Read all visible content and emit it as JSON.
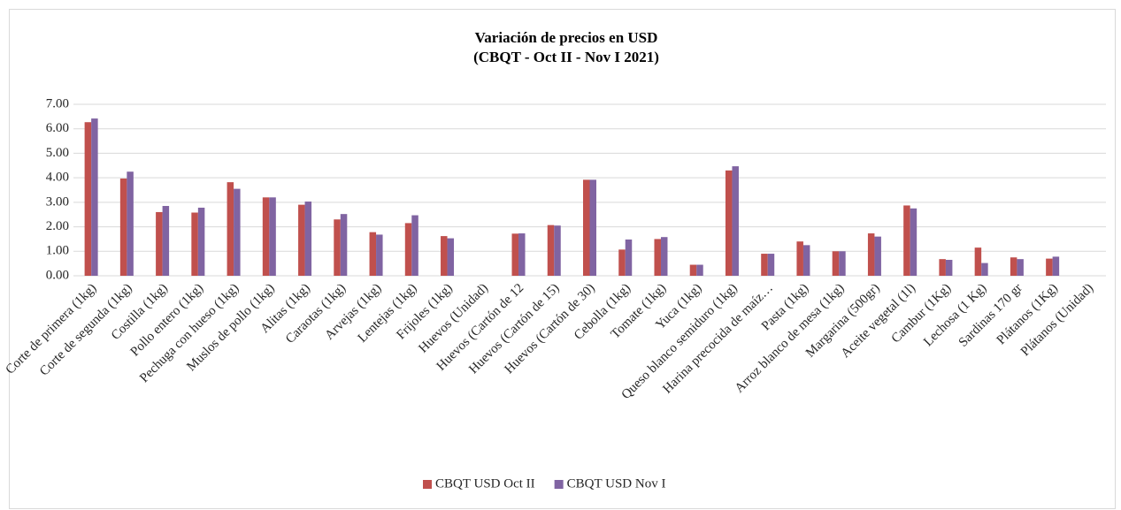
{
  "chart_data": {
    "type": "bar",
    "title": "Variación de precios en USD",
    "subtitle": "(CBQT - Oct II - Nov I 2021)",
    "categories": [
      "Corte de primera (1kg)",
      "Corte de segunda (1kg)",
      "Costilla (1kg)",
      "Pollo entero (1kg)",
      "Pechuga con hueso (1kg)",
      "Muslos de pollo (1kg)",
      "Alitas (1kg)",
      "Caraotas (1kg)",
      "Arvejas (1kg)",
      "Lentejas (1kg)",
      "Frijoles (1kg)",
      "Huevos (Unidad)",
      "Huevos (Cartón de 12",
      "Huevos (Cartón de 15)",
      "Huevos (Cartón de 30)",
      "Cebolla (1kg)",
      "Tomate (1kg)",
      "Yuca (1kg)",
      "Queso blanco semiduro (1kg)",
      "Harina precocida de maíz…",
      "Pasta (1kg)",
      "Arroz blanco de mesa (1kg)",
      "Margarina (500gr)",
      "Aceite vegetal (1l)",
      "Cambur (1Kg)",
      "Lechosa (1 Kg)",
      "Sardinas 170 gr",
      "Plátanos (1Kg)",
      "Plátanos (Unidad)"
    ],
    "series": [
      {
        "name": "CBQT USD Oct II",
        "color": "#c0504d",
        "values": [
          6.27,
          3.97,
          2.6,
          2.58,
          3.82,
          3.2,
          2.9,
          2.3,
          1.78,
          2.15,
          1.62,
          null,
          1.72,
          2.07,
          3.92,
          1.07,
          1.5,
          0.45,
          4.3,
          0.9,
          1.4,
          1.0,
          1.73,
          2.87,
          0.68,
          1.15,
          0.75,
          0.7,
          null
        ]
      },
      {
        "name": "CBQT USD Nov I",
        "color": "#8064a2",
        "values": [
          6.42,
          4.25,
          2.85,
          2.78,
          3.55,
          3.2,
          3.03,
          2.52,
          1.68,
          2.47,
          1.53,
          null,
          1.73,
          2.05,
          3.92,
          1.48,
          1.58,
          0.45,
          4.47,
          0.9,
          1.25,
          1.0,
          1.6,
          2.75,
          0.65,
          0.52,
          0.68,
          0.78,
          null
        ]
      }
    ],
    "ylim": [
      0,
      7
    ],
    "yticks": [
      {
        "value": 0,
        "label": "0.00"
      },
      {
        "value": 1,
        "label": "1.00"
      },
      {
        "value": 2,
        "label": "2.00"
      },
      {
        "value": 3,
        "label": "3.00"
      },
      {
        "value": 4,
        "label": "4.00"
      },
      {
        "value": 5,
        "label": "5.00"
      },
      {
        "value": 6,
        "label": "6.00"
      },
      {
        "value": 7,
        "label": "7.00"
      }
    ],
    "grid": true,
    "legend": "bottom"
  }
}
